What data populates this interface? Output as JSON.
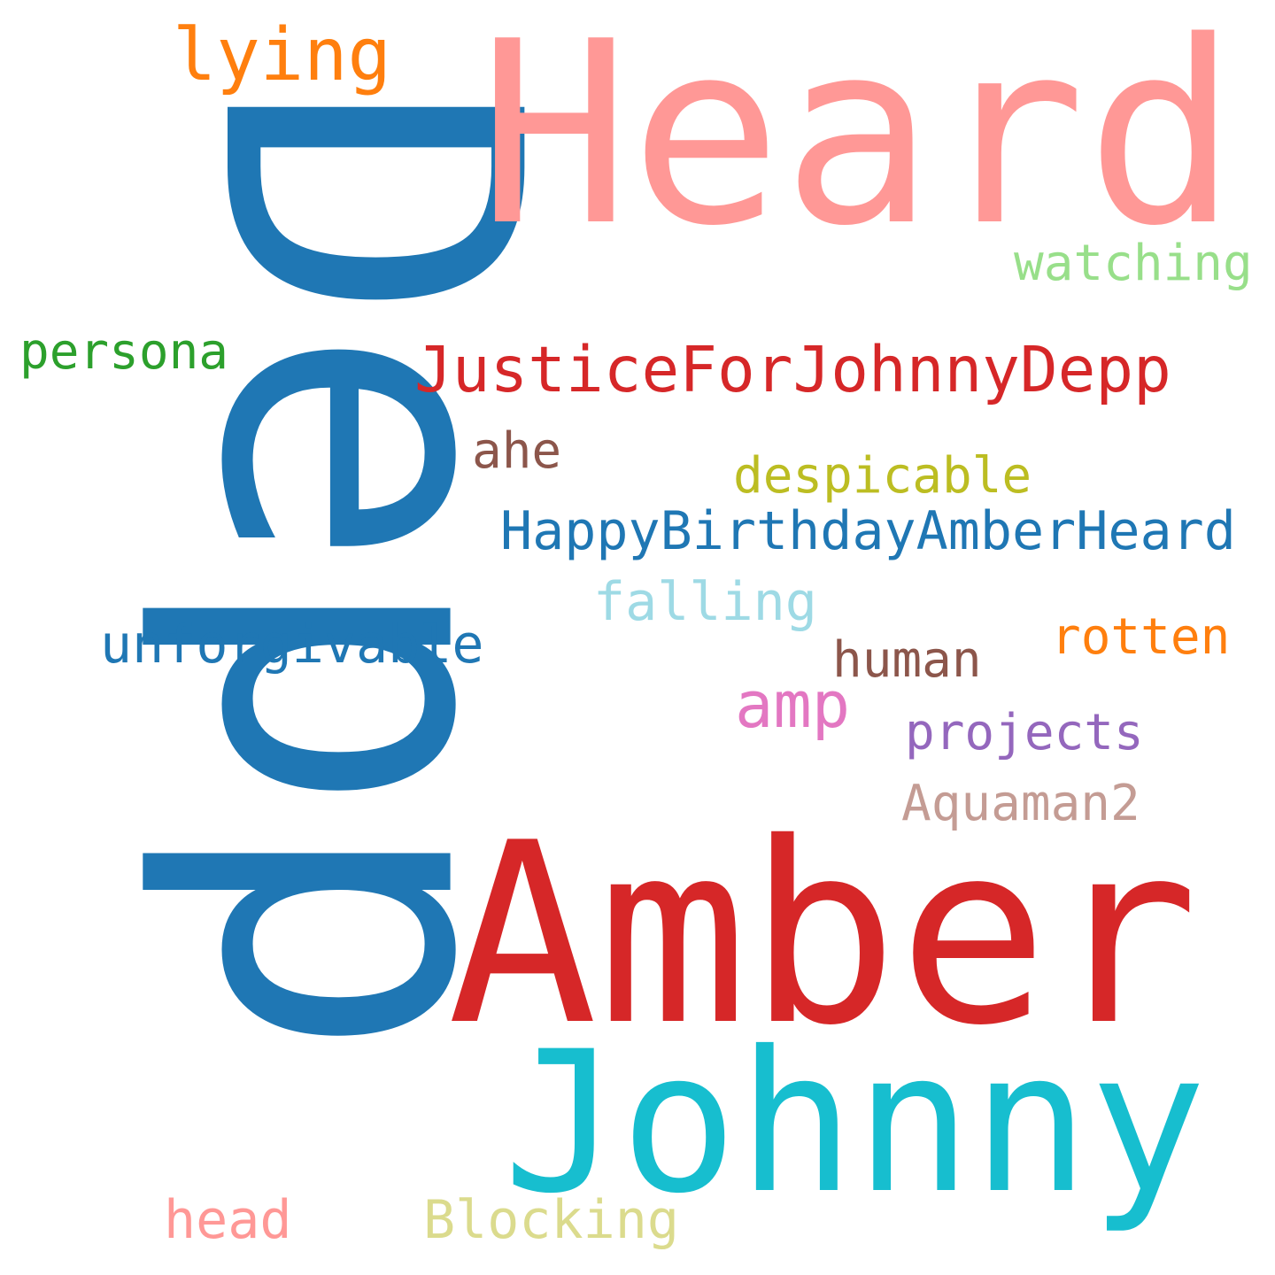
{
  "words": {
    "depp": {
      "text": "Depp",
      "color": "#1f77b4"
    },
    "heard": {
      "text": "Heard",
      "color": "#ff9896"
    },
    "amber": {
      "text": "Amber",
      "color": "#d62728"
    },
    "johnny": {
      "text": "Johnny",
      "color": "#17becf"
    },
    "justice": {
      "text": "JusticeForJohnnyDepp",
      "color": "#d62728"
    },
    "happy": {
      "text": "HappyBirthdayAmberHeard",
      "color": "#1f77b4"
    },
    "lying": {
      "text": "lying",
      "color": "#ff7f0e"
    },
    "watching": {
      "text": "watching",
      "color": "#98df8a"
    },
    "persona": {
      "text": "persona",
      "color": "#2ca02c"
    },
    "ahe": {
      "text": "ahe",
      "color": "#8c564b"
    },
    "despicable": {
      "text": "despicable",
      "color": "#bcbd22"
    },
    "falling": {
      "text": "falling",
      "color": "#9edae5"
    },
    "unforgivable": {
      "text": "unforgivable",
      "color": "#1f77b4"
    },
    "rotten": {
      "text": "rotten",
      "color": "#ff7f0e"
    },
    "human": {
      "text": "human",
      "color": "#8c564b"
    },
    "amp": {
      "text": "amp",
      "color": "#e377c2"
    },
    "projects": {
      "text": "projects",
      "color": "#9467bd"
    },
    "aquaman2": {
      "text": "Aquaman2",
      "color": "#c49c94"
    },
    "head": {
      "text": "head",
      "color": "#ff9896"
    },
    "blocking": {
      "text": "Blocking",
      "color": "#dbdb8d"
    }
  }
}
